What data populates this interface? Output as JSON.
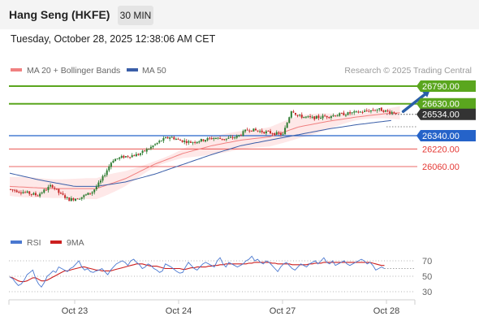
{
  "header": {
    "title": "Hang Seng (HKFE)",
    "timeframe": "30 MIN",
    "datetime": "Tuesday, October 28, 2025 12:38:06 AM CET"
  },
  "colors": {
    "resistance": "#5aa61e",
    "pivot": "#2563c9",
    "support": "#e53935",
    "price_tag": "#333333",
    "candle_up": "#2e7d32",
    "candle_down": "#c62828",
    "ma20": "#f08080",
    "ma50": "#3a5ea8",
    "rsi": "#4a78d0",
    "rsi_ma": "#cc1f1f",
    "arrow": "#2a5fa8"
  },
  "chart_data": [
    {
      "type": "candlestick",
      "legend": [
        {
          "name": "MA 20 + Bollinger Bands",
          "color": "#f08080"
        },
        {
          "name": "MA 50",
          "color": "#3a5ea8"
        }
      ],
      "watermark": "Research © 2025 Trading Central",
      "x_ticks": [
        "Oct 23",
        "Oct 24",
        "Oct 27",
        "Oct 28"
      ],
      "current_price": "26534.00",
      "levels": [
        {
          "value": 26790,
          "label": "26790.00",
          "kind": "resistance"
        },
        {
          "value": 26630,
          "label": "26630.00",
          "kind": "resistance"
        },
        {
          "value": 26340,
          "label": "26340.00",
          "kind": "pivot"
        },
        {
          "value": 26220,
          "label": "26220.00",
          "kind": "support"
        },
        {
          "value": 26060,
          "label": "26060.00",
          "kind": "support"
        }
      ],
      "price_path": [
        [
          0,
          25855
        ],
        [
          10,
          25830
        ],
        [
          20,
          25800
        ],
        [
          30,
          25890
        ],
        [
          35,
          25820
        ],
        [
          42,
          25760
        ],
        [
          50,
          25780
        ],
        [
          58,
          25830
        ],
        [
          64,
          25930
        ],
        [
          72,
          26120
        ],
        [
          80,
          26150
        ],
        [
          90,
          26170
        ],
        [
          98,
          26230
        ],
        [
          106,
          26300
        ],
        [
          112,
          26330
        ],
        [
          118,
          26300
        ],
        [
          126,
          26280
        ],
        [
          134,
          26300
        ],
        [
          142,
          26320
        ],
        [
          150,
          26310
        ],
        [
          158,
          26330
        ],
        [
          166,
          26400
        ],
        [
          174,
          26380
        ],
        [
          180,
          26370
        ],
        [
          190,
          26350
        ],
        [
          196,
          26580
        ],
        [
          200,
          26520
        ],
        [
          210,
          26500
        ],
        [
          222,
          26520
        ],
        [
          234,
          26540
        ],
        [
          246,
          26560
        ],
        [
          256,
          26580
        ],
        [
          262,
          26560
        ],
        [
          270,
          26545
        ]
      ],
      "ma20_path": [
        [
          0,
          25880
        ],
        [
          30,
          25860
        ],
        [
          60,
          25860
        ],
        [
          80,
          25950
        ],
        [
          100,
          26080
        ],
        [
          120,
          26180
        ],
        [
          140,
          26250
        ],
        [
          160,
          26300
        ],
        [
          180,
          26330
        ],
        [
          200,
          26420
        ],
        [
          220,
          26470
        ],
        [
          240,
          26510
        ],
        [
          260,
          26540
        ],
        [
          270,
          26548
        ]
      ],
      "ma50_path": [
        [
          0,
          26000
        ],
        [
          20,
          25940
        ],
        [
          45,
          25880
        ],
        [
          60,
          25880
        ],
        [
          80,
          25920
        ],
        [
          100,
          25990
        ],
        [
          120,
          26080
        ],
        [
          140,
          26170
        ],
        [
          160,
          26250
        ],
        [
          180,
          26300
        ],
        [
          200,
          26350
        ],
        [
          220,
          26400
        ],
        [
          240,
          26440
        ],
        [
          265,
          26480
        ]
      ],
      "forecast_arrow": {
        "from": [
          270,
          26545
        ],
        "to": [
          290,
          26770
        ]
      }
    },
    {
      "type": "line",
      "legend": [
        {
          "name": "RSI",
          "color": "#4a78d0"
        },
        {
          "name": "9MA",
          "color": "#cc1f1f"
        }
      ],
      "y_ticks": [
        "70",
        "50",
        "30"
      ],
      "ylim": [
        20,
        80
      ],
      "rsi": [
        49,
        47,
        42,
        38,
        40,
        45,
        52,
        55,
        58,
        47,
        40,
        36,
        42,
        50,
        53,
        57,
        55,
        62,
        60,
        58,
        56,
        60,
        62,
        66,
        70,
        62,
        58,
        60,
        56,
        55,
        57,
        58,
        60,
        56,
        52,
        58,
        62,
        66,
        68,
        70,
        68,
        64,
        70,
        72,
        68,
        65,
        60,
        62,
        66,
        64,
        60,
        58,
        55,
        57,
        66,
        64,
        62,
        59,
        56,
        54,
        55,
        62,
        68,
        64,
        60,
        58,
        62,
        66,
        68,
        66,
        64,
        62,
        70,
        74,
        66,
        62,
        68,
        66,
        64,
        62,
        64,
        66,
        70,
        72,
        76,
        70,
        72,
        68,
        66,
        70,
        68,
        64,
        60,
        56,
        62,
        66,
        68,
        64,
        60,
        58,
        62,
        66,
        64,
        62,
        66,
        68,
        70,
        66,
        70,
        74,
        68,
        66,
        70,
        64,
        66,
        68,
        70,
        66,
        64,
        66,
        68,
        70,
        72,
        70,
        66,
        68,
        64,
        58,
        60,
        62,
        60
      ],
      "rsi_ma": [
        49,
        48,
        46,
        44,
        43,
        43,
        44,
        46,
        48,
        48,
        46,
        44,
        44,
        45,
        47,
        49,
        51,
        53,
        55,
        57,
        57,
        58,
        59,
        60,
        61,
        62,
        62,
        61,
        60,
        59,
        58,
        58,
        57,
        57,
        57,
        57,
        58,
        59,
        60,
        61,
        62,
        63,
        64,
        65,
        66,
        66,
        66,
        65,
        64,
        63,
        63,
        63,
        62,
        61,
        60,
        60,
        60,
        60,
        60,
        60,
        59,
        59,
        60,
        61,
        61,
        62,
        62,
        62,
        62,
        63,
        63,
        64,
        64,
        65,
        65,
        66,
        66,
        66,
        66,
        66,
        66,
        66,
        66,
        67,
        67,
        68,
        68,
        68,
        68,
        68,
        68,
        67,
        67,
        66,
        66,
        66,
        66,
        66,
        65,
        65,
        65,
        65,
        65,
        65,
        66,
        66,
        67,
        67,
        67,
        68,
        68,
        68,
        68,
        68,
        68,
        68,
        68,
        68,
        68,
        68,
        68,
        68,
        68,
        68,
        68,
        68,
        67,
        66,
        65,
        64,
        64
      ]
    }
  ]
}
